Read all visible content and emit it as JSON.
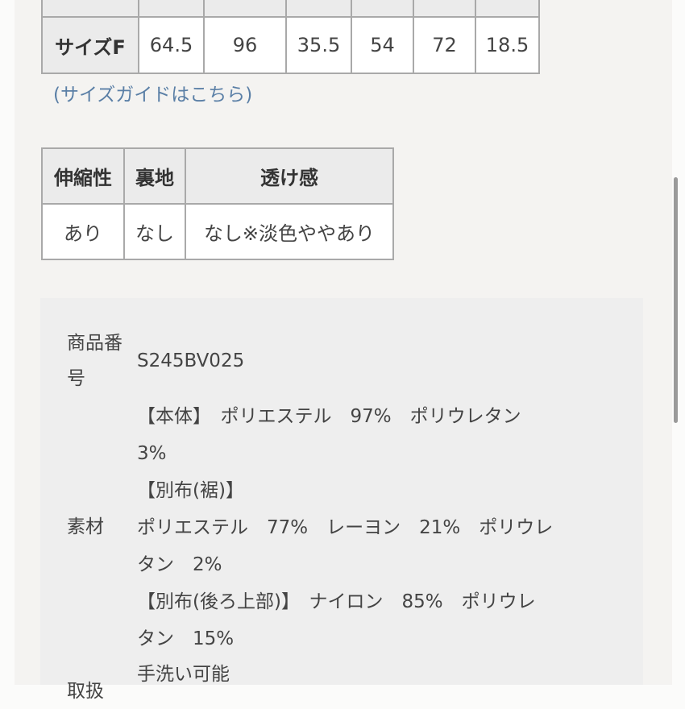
{
  "size_table": {
    "row_label": "サイズF",
    "values": [
      "64.5",
      "96",
      "35.5",
      "54",
      "72",
      "18.5"
    ]
  },
  "size_guide_link": "(サイズガイドはこちら)",
  "attr_table": {
    "headers": [
      "伸縮性",
      "裏地",
      "透け感"
    ],
    "values": [
      "あり",
      "なし",
      "なし※淡色ややあり"
    ]
  },
  "info": {
    "product_number_label": "商品番号",
    "product_number": "S245BV025",
    "material_label": "素材",
    "material_lines": [
      "【本体】　ポリエステル　97%　ポリウレタン",
      "3%",
      "【別布(裾)】",
      "ポリエステル　77%　レーヨン　21%　ポリウレ",
      "タン　2%",
      "【別布(後ろ上部)】　ナイロン　85%　ポリウレ",
      "タン　15%"
    ],
    "care_label": "取扱",
    "care_first_line": "手洗い可能"
  }
}
